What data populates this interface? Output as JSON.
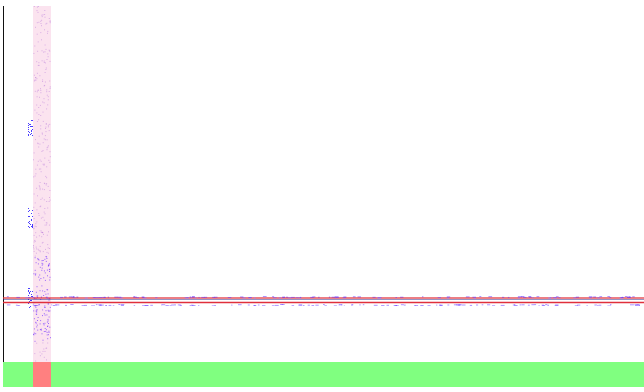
{
  "colors": {
    "background": "#ffffff",
    "left_rule": "#111111",
    "band": "#fbe3ef",
    "band_speckle": "#b06ad8",
    "band_speckle_dense": "#7a3cff",
    "track_line_red": "#e0303c",
    "track_line_dark": "#2b2b8a",
    "track_speckle": "#6a3cff",
    "bottom_strip": "#80ff80",
    "bottom_marker": "#ff8080",
    "glyph": "#4a3cff"
  },
  "icons": {
    "band": "vertical-highlight-band",
    "track": "horizontal-signal-track",
    "glyphs": [
      "speckle-cluster-icon",
      "speckle-cluster-icon",
      "speckle-cluster-icon"
    ]
  }
}
